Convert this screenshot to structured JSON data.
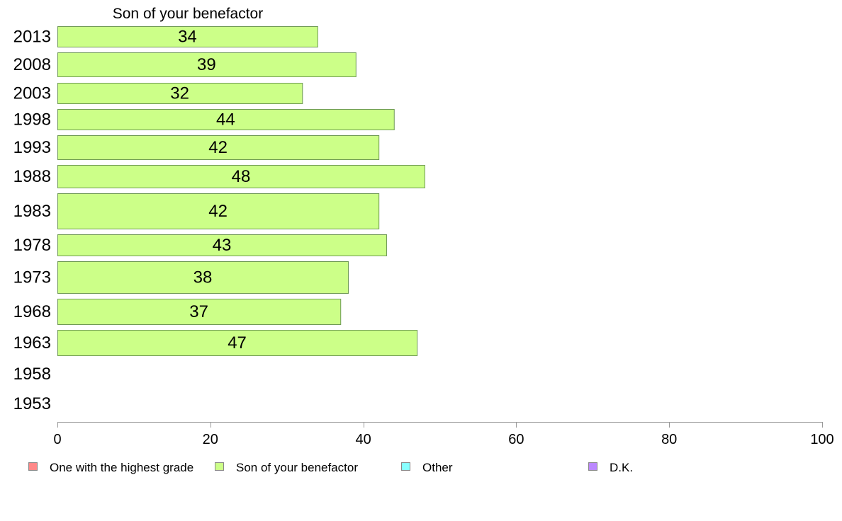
{
  "chart_data": {
    "type": "bar",
    "orientation": "horizontal",
    "title": "Son of your benefactor",
    "categories": [
      "2013",
      "2008",
      "2003",
      "1998",
      "1993",
      "1988",
      "1983",
      "1978",
      "1973",
      "1968",
      "1963",
      "1958",
      "1953"
    ],
    "series": [
      {
        "name": "Son of your benefactor",
        "color": "#ccff88",
        "values": [
          34,
          39,
          32,
          44,
          42,
          48,
          42,
          43,
          38,
          37,
          47,
          null,
          null
        ]
      }
    ],
    "xlim": [
      0,
      100
    ],
    "xticks": [
      0,
      20,
      40,
      60,
      80,
      100
    ],
    "grid": false,
    "legend_position": "bottom",
    "legend": [
      {
        "label": "One with the highest grade",
        "color": "#ff8888"
      },
      {
        "label": "Son of your benefactor",
        "color": "#ccff88"
      },
      {
        "label": "Other",
        "color": "#88ffff"
      },
      {
        "label": "D.K.",
        "color": "#bb88ff"
      }
    ]
  }
}
